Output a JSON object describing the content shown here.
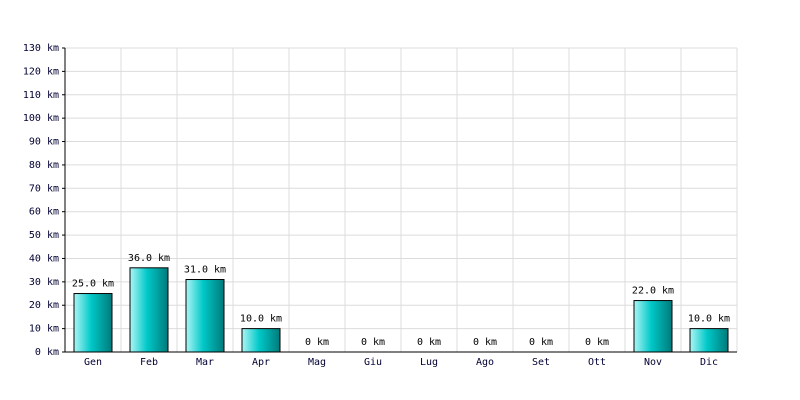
{
  "chart_data": {
    "type": "bar",
    "categories": [
      "Gen",
      "Feb",
      "Mar",
      "Apr",
      "Mag",
      "Giu",
      "Lug",
      "Ago",
      "Set",
      "Ott",
      "Nov",
      "Dic"
    ],
    "values": [
      25,
      36,
      31,
      10,
      0,
      0,
      0,
      0,
      0,
      0,
      22,
      10
    ],
    "value_labels": [
      "25.0 km",
      "36.0 km",
      "31.0 km",
      "10.0 km",
      "0 km",
      "0 km",
      "0 km",
      "0 km",
      "0 km",
      "0 km",
      "22.0 km",
      "10.0 km"
    ],
    "color": "#00c8c8",
    "ylim": [
      0,
      130
    ],
    "yticks": [
      {
        "value": 0,
        "label": "0 km"
      },
      {
        "value": 10,
        "label": "10 km"
      },
      {
        "value": 20,
        "label": "20 km"
      },
      {
        "value": 30,
        "label": "30 km"
      },
      {
        "value": 40,
        "label": "40 km"
      },
      {
        "value": 50,
        "label": "50 km"
      },
      {
        "value": 60,
        "label": "60 km"
      },
      {
        "value": 70,
        "label": "70 km"
      },
      {
        "value": 80,
        "label": "80 km"
      },
      {
        "value": 90,
        "label": "90 km"
      },
      {
        "value": 100,
        "label": "100 km"
      },
      {
        "value": 110,
        "label": "110 km"
      },
      {
        "value": 120,
        "label": "120 km"
      },
      {
        "value": 130,
        "label": "130 km"
      }
    ],
    "grid": true
  }
}
